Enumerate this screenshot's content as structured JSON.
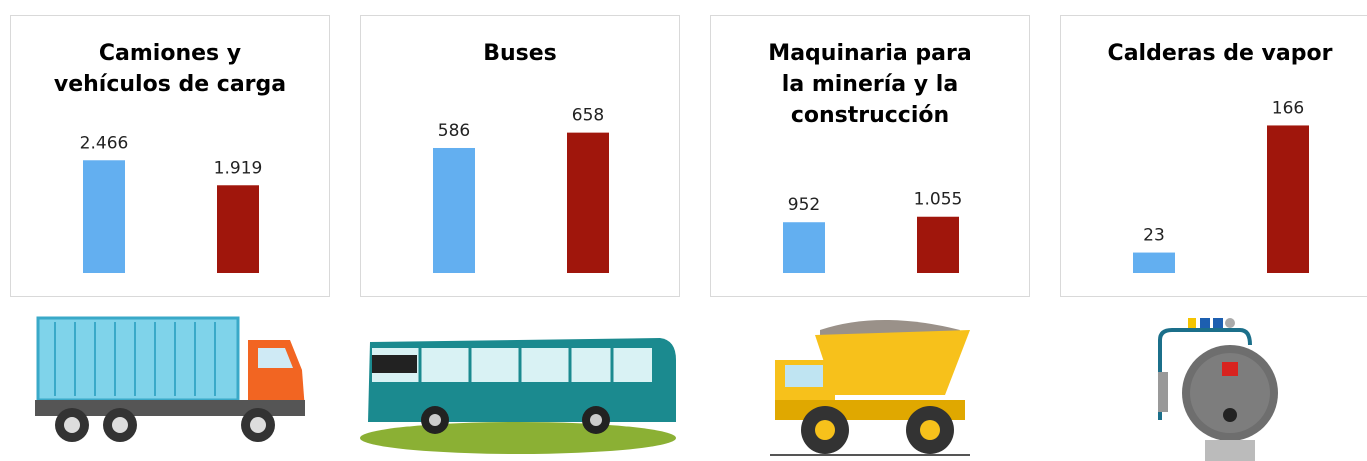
{
  "chart_data": [
    {
      "type": "bar",
      "title": "Camiones y vehículos de carga",
      "categories": [
        null,
        null
      ],
      "values": [
        2466,
        1919
      ],
      "value_labels": [
        "2.466",
        "1.919"
      ],
      "colors": [
        "#63aff0",
        "#a0160c"
      ],
      "ylim": [
        0,
        3500
      ]
    },
    {
      "type": "bar",
      "title": "Buses",
      "categories": [
        null,
        null
      ],
      "values": [
        586,
        658
      ],
      "colors": [
        "#63aff0",
        "#a0160c"
      ],
      "ylim": [
        0,
        750
      ]
    },
    {
      "type": "bar",
      "title": "Maquinaria para la minería y la construcción",
      "categories": [
        null,
        null
      ],
      "values": [
        952,
        1055
      ],
      "value_labels": [
        "952",
        "1.055"
      ],
      "colors": [
        "#63aff0",
        "#a0160c"
      ],
      "ylim": [
        0,
        3000
      ]
    },
    {
      "type": "bar",
      "title": "Calderas de vapor",
      "categories": [
        null,
        null
      ],
      "values": [
        23,
        166
      ],
      "colors": [
        "#63aff0",
        "#a0160c"
      ],
      "ylim": [
        0,
        180
      ]
    }
  ]
}
